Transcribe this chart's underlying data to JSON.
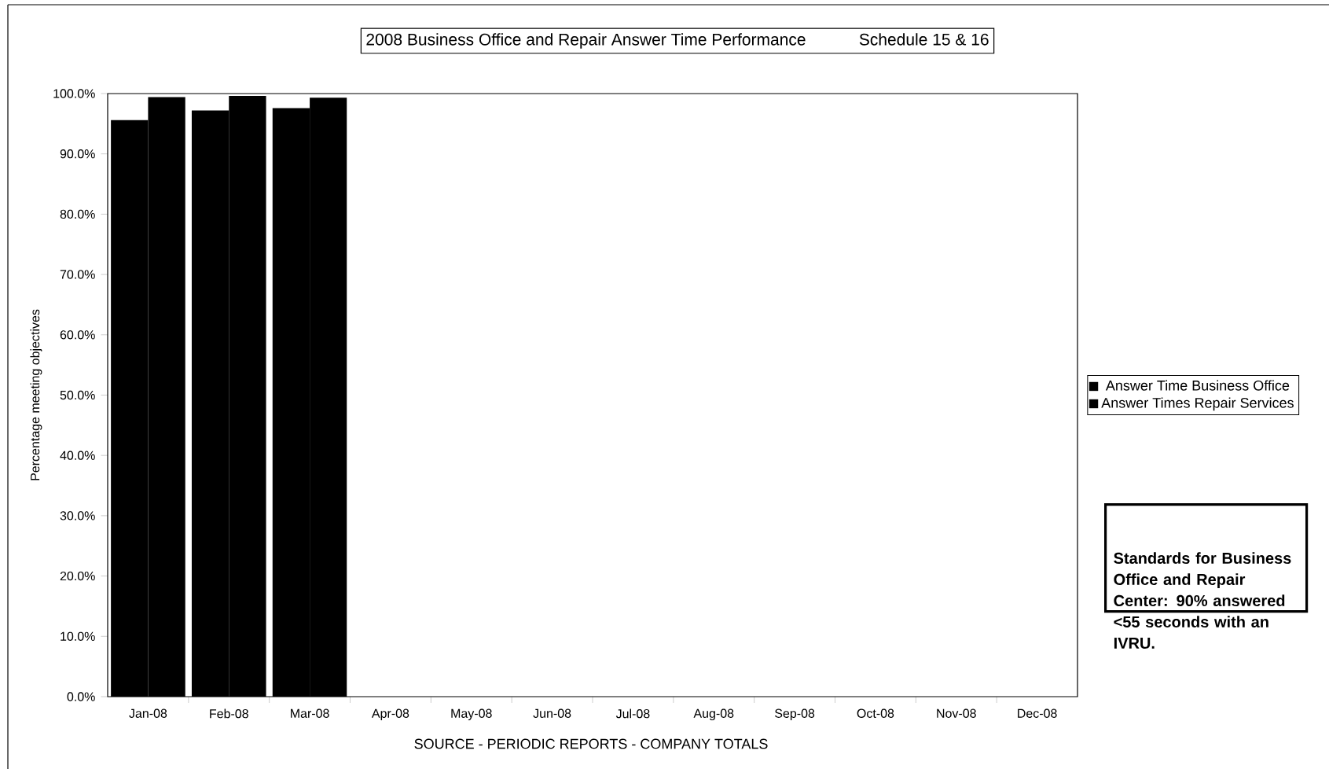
{
  "chart_data": {
    "type": "bar",
    "title": "2008 Business Office and Repair Answer Time Performance",
    "subtitle": "Schedule 15 & 16",
    "ylabel": "Percentage meeting objectives",
    "categories": [
      "Jan-08",
      "Feb-08",
      "Mar-08",
      "Apr-08",
      "May-08",
      "Jun-08",
      "Jul-08",
      "Aug-08",
      "Sep-08",
      "Oct-08",
      "Nov-08",
      "Dec-08"
    ],
    "series": [
      {
        "name": "Answer Time Business Office",
        "color": "#000000",
        "values": [
          95.6,
          97.2,
          97.6,
          null,
          null,
          null,
          null,
          null,
          null,
          null,
          null,
          null
        ]
      },
      {
        "name": "Answer Times Repair Services",
        "color": "#000000",
        "values": [
          99.4,
          99.6,
          99.3,
          null,
          null,
          null,
          null,
          null,
          null,
          null,
          null,
          null
        ]
      }
    ],
    "ylim": [
      0,
      100
    ],
    "yticks": [
      {
        "value": 0,
        "label": "0.0%"
      },
      {
        "value": 10,
        "label": "10.0%"
      },
      {
        "value": 20,
        "label": "20.0%"
      },
      {
        "value": 30,
        "label": "30.0%"
      },
      {
        "value": 40,
        "label": "40.0%"
      },
      {
        "value": 50,
        "label": "50.0%"
      },
      {
        "value": 60,
        "label": "60.0%"
      },
      {
        "value": 70,
        "label": "70.0%"
      },
      {
        "value": 80,
        "label": "80.0%"
      },
      {
        "value": 90,
        "label": "90.0%"
      },
      {
        "value": 100,
        "label": "100.0%"
      }
    ],
    "legend": "right",
    "annotations": [
      "**Standards for Business Office and Repair Center: 90% answered <55 seconds with an IVRU.**",
      "SOURCE - PERIODIC REPORTS - COMPANY TOTALS"
    ]
  }
}
